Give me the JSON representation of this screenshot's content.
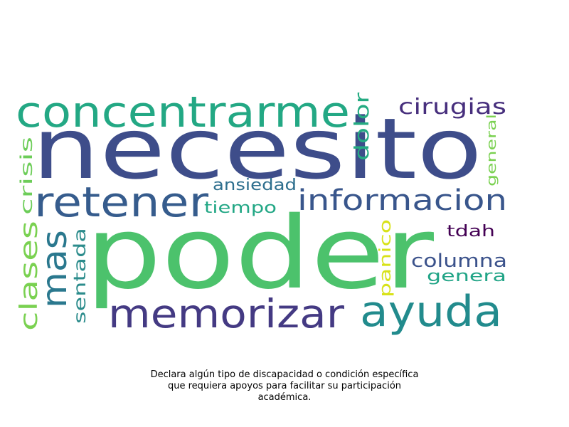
{
  "words": [
    {
      "text": "poder",
      "color": "#4cc26c"
    },
    {
      "text": "necesito",
      "color": "#3e4d8a"
    },
    {
      "text": "concentrarme",
      "color": "#23a884"
    },
    {
      "text": "retener",
      "color": "#365c8d"
    },
    {
      "text": "informacion",
      "color": "#39568c"
    },
    {
      "text": "memorizar",
      "color": "#443a83"
    },
    {
      "text": "ayuda",
      "color": "#228b8d"
    },
    {
      "text": "mas",
      "color": "#2a788e"
    },
    {
      "text": "clases",
      "color": "#7ad151"
    },
    {
      "text": "cirugias",
      "color": "#472f7d"
    },
    {
      "text": "dolor",
      "color": "#25ab82"
    },
    {
      "text": "crisis",
      "color": "#6dcd59"
    },
    {
      "text": "ansiedad",
      "color": "#2e6f8e"
    },
    {
      "text": "tiempo",
      "color": "#22a785"
    },
    {
      "text": "general",
      "color": "#7ad151"
    },
    {
      "text": "tdah",
      "color": "#440154"
    },
    {
      "text": "panico",
      "color": "#d8e219"
    },
    {
      "text": "columna",
      "color": "#3b528b"
    },
    {
      "text": "genera",
      "color": "#20a486"
    },
    {
      "text": "sentada",
      "color": "#2c8c8c"
    }
  ],
  "caption": [
    "Declara algún tipo de discapacidad o condición específica",
    "que requiera apoyos para facilitar su participación",
    "académica."
  ]
}
